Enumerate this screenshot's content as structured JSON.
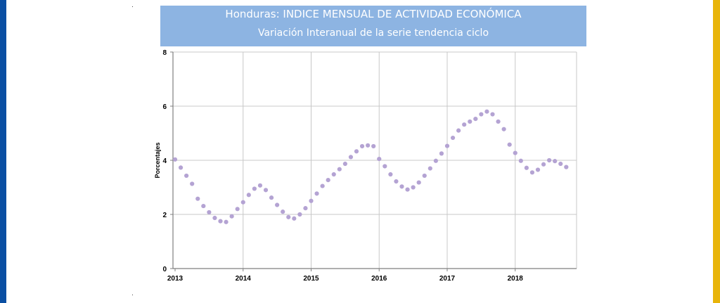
{
  "colors": {
    "left_bar": "#0a4fa3",
    "right_bar": "#e8b40a",
    "title_bg": "#8db4e2",
    "marker": "#b4a3d3",
    "grid": "#c8c8c8",
    "axis": "#7f7f7f"
  },
  "chart_data": {
    "type": "scatter",
    "title": "Honduras: INDICE MENSUAL DE ACTIVIDAD ECONÓMICA",
    "subtitle": "Variación Interanual de la serie tendencia ciclo",
    "xlabel": "",
    "ylabel": "Porcentajes",
    "xlim": [
      2013,
      2018.75
    ],
    "ylim": [
      0,
      8
    ],
    "x_tick_labels": [
      "2013",
      "2014",
      "2015",
      "2016",
      "2017",
      "2018"
    ],
    "y_tick_labels": [
      "0",
      "2",
      "4",
      "6",
      "8"
    ],
    "grid": true,
    "legend": "none",
    "series": [
      {
        "values": [
          4.03,
          3.73,
          3.43,
          3.13,
          2.58,
          2.31,
          2.08,
          1.87,
          1.75,
          1.72,
          1.93,
          2.2,
          2.45,
          2.72,
          2.95,
          3.07,
          2.9,
          2.62,
          2.35,
          2.1,
          1.9,
          1.85,
          2.0,
          2.23,
          2.5,
          2.77,
          3.05,
          3.27,
          3.48,
          3.67,
          3.87,
          4.12,
          4.33,
          4.52,
          4.55,
          4.52,
          4.05,
          3.78,
          3.48,
          3.22,
          3.03,
          2.92,
          3.0,
          3.18,
          3.43,
          3.7,
          3.98,
          4.25,
          4.53,
          4.83,
          5.1,
          5.32,
          5.43,
          5.53,
          5.7,
          5.8,
          5.7,
          5.43,
          5.15,
          4.58,
          4.27,
          3.98,
          3.72,
          3.55,
          3.65,
          3.85,
          4.0,
          3.97,
          3.87,
          3.75
        ]
      }
    ]
  }
}
